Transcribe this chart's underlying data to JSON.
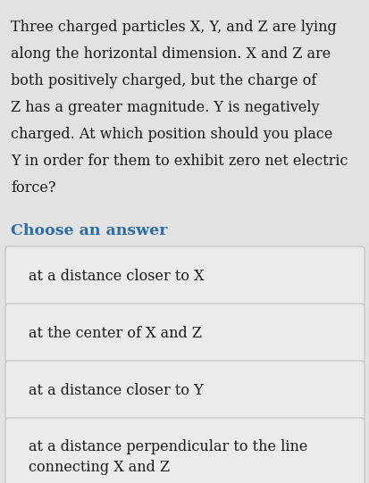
{
  "background_color": "#e2e2e2",
  "question_lines": [
    "Three charged particles X, Y, and Z are lying",
    "along the horizontal dimension. X and Z are",
    "both positively charged, but the charge of",
    "Z has a greater magnitude. Y is negatively",
    "charged. At which position should you place",
    "Y in order for them to exhibit zero net electric",
    "force?"
  ],
  "choose_label": "Choose an answer",
  "choose_color": "#2e6da4",
  "options": [
    "at a distance closer to X",
    "at the center of X and Z",
    "at a distance closer to Y",
    "at a distance perpendicular to the line\nconnecting X and Z"
  ],
  "option_bg": "#ebebeb",
  "option_border": "#c0c0c0",
  "text_color": "#1a1a1a",
  "question_fontsize": 11.5,
  "option_fontsize": 11.5,
  "label_fontsize": 12.5
}
